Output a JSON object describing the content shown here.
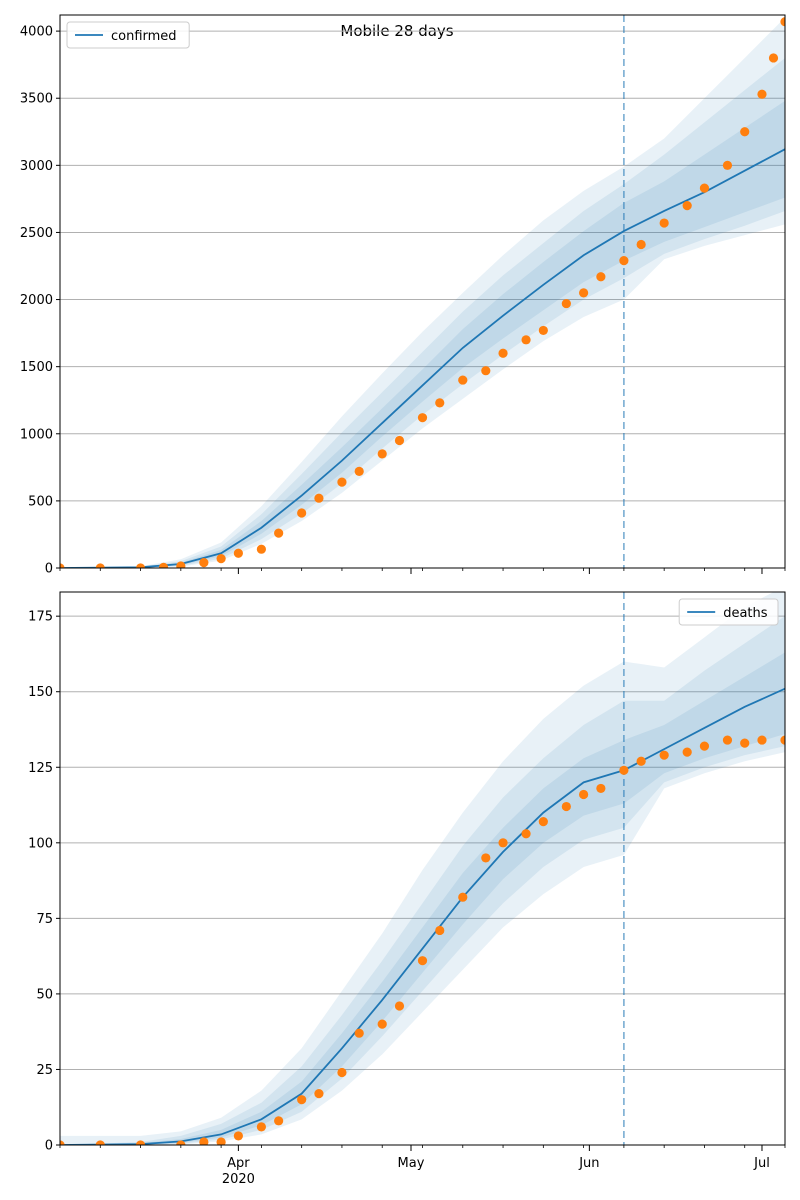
{
  "figure": {
    "title": "Mobile 28 days"
  },
  "colors": {
    "line": "#1f77b4",
    "observed": "#ff7f0e",
    "band": "#1f77b4",
    "forecast_marker": "#1f77b4",
    "grid": "#b0b0b0"
  },
  "chart_data": [
    {
      "type": "line",
      "name": "confirmed-panel",
      "legend": {
        "label": "confirmed",
        "placement": "upper-left"
      },
      "xlim": [
        "2020-03-01",
        "2020-07-05"
      ],
      "ylim": [
        0,
        4120
      ],
      "yticks": [
        0,
        500,
        1000,
        1500,
        2000,
        2500,
        3000,
        3500,
        4000
      ],
      "grid": "y",
      "forecast_start": "2020-06-07",
      "model": {
        "x": [
          "2020-03-01",
          "2020-03-15",
          "2020-03-22",
          "2020-03-29",
          "2020-04-05",
          "2020-04-12",
          "2020-04-19",
          "2020-04-26",
          "2020-05-03",
          "2020-05-10",
          "2020-05-17",
          "2020-05-24",
          "2020-05-31",
          "2020-06-07",
          "2020-06-14",
          "2020-06-21",
          "2020-06-28",
          "2020-07-05"
        ],
        "median": [
          0,
          5,
          30,
          110,
          300,
          540,
          800,
          1080,
          1360,
          1640,
          1880,
          2110,
          2330,
          2510,
          2660,
          2800,
          2960,
          3120
        ],
        "band_1": {
          "low": [
            0,
            3,
            22,
            88,
            255,
            470,
            710,
            980,
            1240,
            1490,
            1710,
            1920,
            2130,
            2290,
            2430,
            2540,
            2650,
            2760
          ],
          "high": [
            0,
            7,
            40,
            135,
            350,
            620,
            900,
            1190,
            1480,
            1780,
            2040,
            2280,
            2510,
            2720,
            2880,
            3080,
            3280,
            3480
          ]
        },
        "band_2": {
          "low": [
            0,
            2,
            16,
            70,
            215,
            405,
            630,
            890,
            1140,
            1370,
            1590,
            1800,
            2000,
            2160,
            2340,
            2450,
            2550,
            2660
          ],
          "high": [
            0,
            9,
            50,
            160,
            400,
            700,
            1010,
            1310,
            1610,
            1910,
            2180,
            2420,
            2660,
            2860,
            3080,
            3320,
            3560,
            3800
          ]
        },
        "band_3": {
          "low": [
            0,
            1,
            10,
            55,
            180,
            350,
            560,
            800,
            1040,
            1260,
            1480,
            1690,
            1870,
            2000,
            2300,
            2400,
            2480,
            2560
          ],
          "high": [
            0,
            12,
            65,
            190,
            460,
            790,
            1130,
            1450,
            1760,
            2050,
            2330,
            2590,
            2810,
            2990,
            3200,
            3500,
            3800,
            4100
          ]
        }
      },
      "observed": {
        "x": [
          "2020-03-01",
          "2020-03-08",
          "2020-03-15",
          "2020-03-19",
          "2020-03-22",
          "2020-03-26",
          "2020-03-29",
          "2020-04-01",
          "2020-04-05",
          "2020-04-08",
          "2020-04-12",
          "2020-04-15",
          "2020-04-19",
          "2020-04-22",
          "2020-04-26",
          "2020-04-29",
          "2020-05-03",
          "2020-05-06",
          "2020-05-10",
          "2020-05-14",
          "2020-05-17",
          "2020-05-21",
          "2020-05-24",
          "2020-05-28",
          "2020-05-31",
          "2020-06-03",
          "2020-06-07",
          "2020-06-10",
          "2020-06-14",
          "2020-06-18",
          "2020-06-21",
          "2020-06-25",
          "2020-06-28",
          "2020-07-01",
          "2020-07-03",
          "2020-07-05"
        ],
        "values": [
          0,
          0,
          0,
          5,
          15,
          40,
          70,
          110,
          140,
          260,
          410,
          520,
          640,
          720,
          850,
          950,
          1120,
          1230,
          1400,
          1470,
          1600,
          1700,
          1770,
          1970,
          2050,
          2170,
          2290,
          2410,
          2570,
          2700,
          2830,
          3000,
          3250,
          3530,
          3800,
          4070
        ]
      },
      "x_tick_labels": [
        {
          "date": "2020-04-01",
          "label": "Apr"
        },
        {
          "date": "2020-05-01",
          "label": "May"
        },
        {
          "date": "2020-06-01",
          "label": "Jun"
        },
        {
          "date": "2020-07-01",
          "label": "Jul"
        }
      ],
      "show_x_tick_labels": false
    },
    {
      "type": "line",
      "name": "deaths-panel",
      "legend": {
        "label": "deaths",
        "placement": "upper-right"
      },
      "xlim": [
        "2020-03-01",
        "2020-07-05"
      ],
      "ylim": [
        0,
        183
      ],
      "yticks": [
        0,
        25,
        50,
        75,
        100,
        125,
        150,
        175
      ],
      "grid": "y",
      "forecast_start": "2020-06-07",
      "model": {
        "x": [
          "2020-03-01",
          "2020-03-15",
          "2020-03-22",
          "2020-03-29",
          "2020-04-05",
          "2020-04-12",
          "2020-04-19",
          "2020-04-26",
          "2020-05-03",
          "2020-05-10",
          "2020-05-17",
          "2020-05-24",
          "2020-05-31",
          "2020-06-07",
          "2020-06-14",
          "2020-06-21",
          "2020-06-28",
          "2020-07-05"
        ],
        "median": [
          0,
          0.3,
          1.2,
          3.5,
          8.5,
          17,
          32,
          48,
          65,
          82,
          97,
          110,
          120,
          124,
          131,
          138,
          145,
          151
        ],
        "band_1": {
          "low": [
            0,
            0.1,
            0.7,
            2.5,
            6.5,
            13.5,
            26,
            41,
            57,
            73,
            88,
            100,
            109,
            113,
            123,
            128,
            132,
            136
          ],
          "high": [
            0,
            0.6,
            2,
            5,
            11,
            21,
            37,
            54,
            72,
            90,
            105,
            118,
            128,
            134,
            139,
            147,
            155,
            163
          ]
        },
        "band_2": {
          "low": [
            0,
            0,
            0.4,
            1.8,
            5,
            11,
            22,
            36,
            51,
            66,
            80,
            92,
            101,
            105,
            120,
            125,
            129,
            132
          ],
          "high": [
            0,
            1,
            3,
            7,
            14,
            26,
            43,
            61,
            80,
            99,
            115,
            128,
            139,
            147,
            147,
            157,
            166,
            175
          ]
        },
        "band_3": {
          "low": [
            0,
            0,
            0.2,
            1.2,
            3.5,
            8.5,
            18,
            30,
            44,
            58,
            72,
            83,
            92,
            96,
            118,
            123,
            127,
            130
          ],
          "high": [
            3,
            3,
            4.5,
            9,
            18,
            32,
            51,
            70,
            91,
            110,
            127,
            141,
            152,
            160,
            158,
            168,
            178,
            185
          ]
        }
      },
      "observed": {
        "x": [
          "2020-03-01",
          "2020-03-08",
          "2020-03-15",
          "2020-03-22",
          "2020-03-26",
          "2020-03-29",
          "2020-04-01",
          "2020-04-05",
          "2020-04-08",
          "2020-04-12",
          "2020-04-15",
          "2020-04-19",
          "2020-04-22",
          "2020-04-26",
          "2020-04-29",
          "2020-05-03",
          "2020-05-06",
          "2020-05-10",
          "2020-05-14",
          "2020-05-17",
          "2020-05-21",
          "2020-05-24",
          "2020-05-28",
          "2020-05-31",
          "2020-06-03",
          "2020-06-07",
          "2020-06-10",
          "2020-06-14",
          "2020-06-18",
          "2020-06-21",
          "2020-06-25",
          "2020-06-28",
          "2020-07-01",
          "2020-07-05"
        ],
        "values": [
          0,
          0,
          0,
          0,
          1,
          1,
          3,
          6,
          8,
          15,
          17,
          24,
          37,
          40,
          46,
          61,
          71,
          82,
          95,
          100,
          103,
          107,
          112,
          116,
          118,
          124,
          127,
          129,
          130,
          132,
          134,
          133,
          134,
          134
        ]
      },
      "x_tick_labels": [
        {
          "date": "2020-04-01",
          "label": "Apr",
          "sublabel": "2020"
        },
        {
          "date": "2020-05-01",
          "label": "May"
        },
        {
          "date": "2020-06-01",
          "label": "Jun"
        },
        {
          "date": "2020-07-01",
          "label": "Jul"
        }
      ],
      "show_x_tick_labels": true
    }
  ]
}
